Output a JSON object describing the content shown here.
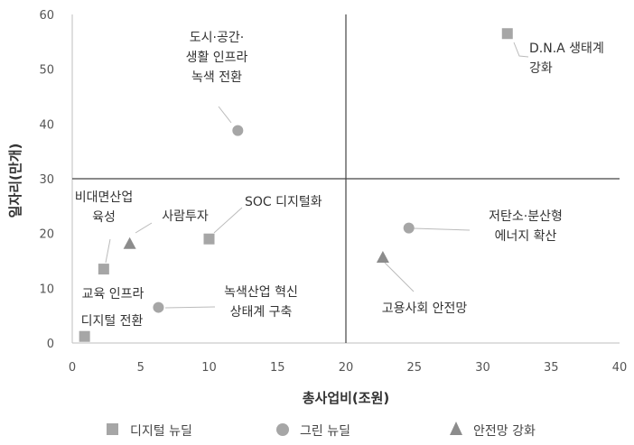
{
  "chart_data": {
    "type": "scatter",
    "xlabel": "총사업비(조원)",
    "ylabel": "일자리(만개)",
    "xlim": [
      0,
      40
    ],
    "ylim": [
      0,
      60
    ],
    "xticks": [
      "0",
      "5",
      "10",
      "15",
      "20",
      "25",
      "30",
      "35",
      "40"
    ],
    "yticks": [
      "0",
      "10",
      "20",
      "30",
      "40",
      "50",
      "60"
    ],
    "reference_lines": {
      "x": 20,
      "y": 30
    },
    "series": [
      {
        "name": "디지털 뉴딜",
        "marker": "square",
        "color": "#a6a6a6",
        "points": [
          {
            "x": 31.8,
            "y": 56.5,
            "label": [
              "D.N.A 생태계",
              "강화"
            ]
          },
          {
            "x": 10.0,
            "y": 19.0,
            "label": [
              "SOC 디지털화"
            ]
          },
          {
            "x": 2.3,
            "y": 13.5,
            "label": [
              "비대면산업",
              "육성"
            ]
          },
          {
            "x": 0.9,
            "y": 1.2,
            "label": [
              "디지털 전환"
            ]
          }
        ]
      },
      {
        "name": "그린 뉴딜",
        "marker": "circle",
        "color": "#a6a6a6",
        "points": [
          {
            "x": 12.1,
            "y": 38.8,
            "label": [
              "도시·공간·",
              "생활 인프라",
              "녹색 전환"
            ]
          },
          {
            "x": 24.6,
            "y": 21.0,
            "label": [
              "저탄소·분산형",
              "에너지 확산"
            ]
          },
          {
            "x": 6.3,
            "y": 6.5,
            "label": [
              "녹색산업 혁신",
              "상태계 구축"
            ]
          },
          {
            "x": 2.3,
            "y": 13.5,
            "label": [
              "교육 인프라"
            ]
          }
        ]
      },
      {
        "name": "안전망 강화",
        "marker": "triangle",
        "color": "#8c8c8c",
        "points": [
          {
            "x": 4.2,
            "y": 18.0,
            "label": [
              "사람투자"
            ]
          },
          {
            "x": 22.7,
            "y": 15.5,
            "label": [
              "고용사회 안전망"
            ]
          }
        ]
      }
    ],
    "legend": {
      "position": "bottom"
    }
  }
}
